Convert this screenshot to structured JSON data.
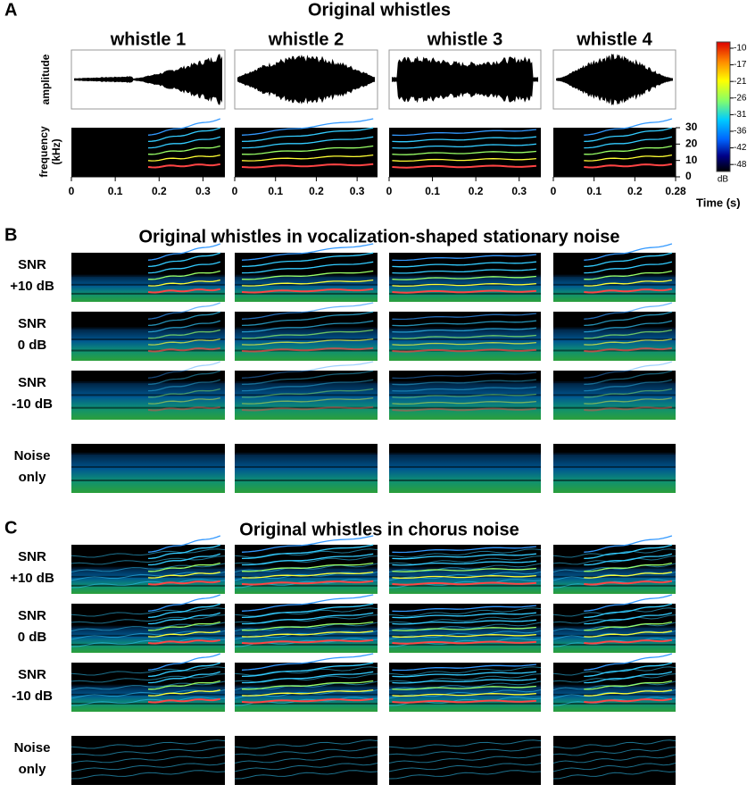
{
  "panels": [
    {
      "label": "A",
      "title": "Original whistles",
      "columns": [
        "whistle 1",
        "whistle 2",
        "whistle 3",
        "whistle 4"
      ],
      "amplitude_label": "amplitude",
      "frequency_label": [
        "frequency",
        "(kHz)"
      ],
      "x_ticks": [
        [
          "0",
          "0.1",
          "0.2",
          "0.3"
        ],
        [
          "0",
          "0.1",
          "0.2",
          "0.3"
        ],
        [
          "0",
          "0.1",
          "0.2",
          "0.3"
        ],
        [
          "0",
          "0.1",
          "0.2",
          "0.28"
        ]
      ],
      "y_ticks": [
        "0",
        "10",
        "20",
        "30"
      ],
      "time_label": "Time (s)",
      "colorbar": {
        "ticks": [
          "-10",
          "-17",
          "-21",
          "-26",
          "-31",
          "-36",
          "-42",
          "-48"
        ],
        "unit": "dB"
      }
    },
    {
      "label": "B",
      "title": "Original whistles in vocalization-shaped stationary noise",
      "rows": [
        [
          "SNR",
          "+10 dB"
        ],
        [
          "SNR",
          "0 dB"
        ],
        [
          "SNR",
          "-10 dB"
        ],
        [
          "Noise",
          "only"
        ]
      ]
    },
    {
      "label": "C",
      "title": "Original whistles in chorus noise",
      "rows": [
        [
          "SNR",
          "+10 dB"
        ],
        [
          "SNR",
          "0 dB"
        ],
        [
          "SNR",
          "-10 dB"
        ],
        [
          "Noise",
          "only"
        ]
      ]
    }
  ]
}
